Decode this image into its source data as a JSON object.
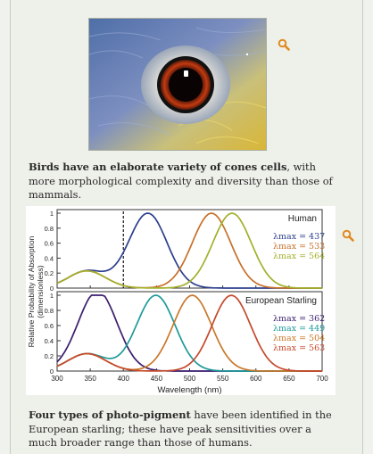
{
  "figure1": {
    "caption_bold": "Birds have an elaborate variety of cones cells",
    "caption_rest": ", with more morphological complexity and diversity than those of mammals."
  },
  "figure2": {
    "caption_bold": "Four types of photo-pigment",
    "caption_rest": " have been identified in the European starling; these have peak sensitivities over a much broader range than those of humans."
  },
  "icons": [
    "zoom-icon",
    "zoom-icon"
  ],
  "chart_data": {
    "type": "line",
    "ylabel": "Relative Probability of Absorption (dimensionless)",
    "xlabel": "Wavelength (nm)",
    "xlim": [
      300,
      700
    ],
    "xticks": [
      "300",
      "350",
      "400",
      "450",
      "500",
      "550",
      "600",
      "650",
      "700"
    ],
    "yticks": [
      "0",
      "0.2",
      "0.4",
      "0.6",
      "0.8",
      "1"
    ],
    "panels": [
      {
        "title": "Human",
        "ylim": [
          0,
          1
        ],
        "marker_line_x": 400,
        "series": [
          {
            "name": "λmax = 437",
            "peak": 437,
            "color": "#2c3e8c"
          },
          {
            "name": "λmax = 533",
            "peak": 533,
            "color": "#c8702a"
          },
          {
            "name": "λmax = 564",
            "peak": 564,
            "color": "#a3b02c"
          }
        ]
      },
      {
        "title": "European Starling",
        "ylim": [
          0,
          1
        ],
        "series": [
          {
            "name": "λmax = 362",
            "peak": 362,
            "color": "#3a1d6e"
          },
          {
            "name": "λmax = 449",
            "peak": 449,
            "color": "#1f9a9a"
          },
          {
            "name": "λmax = 504",
            "peak": 504,
            "color": "#c9782a"
          },
          {
            "name": "λmax = 563",
            "peak": 563,
            "color": "#c44a2c"
          }
        ]
      }
    ]
  }
}
